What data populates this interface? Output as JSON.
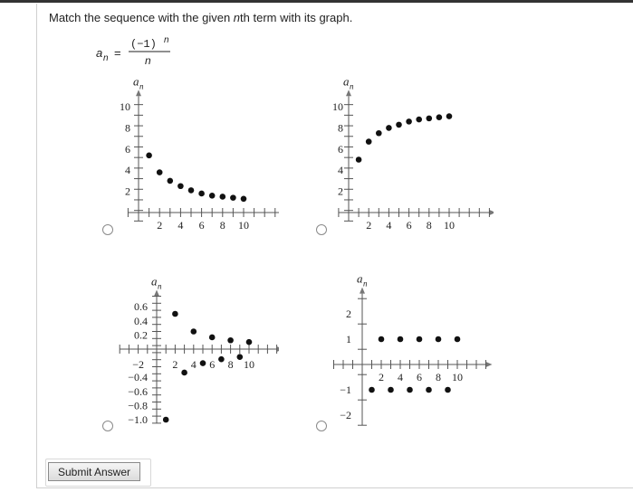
{
  "question": {
    "text_before": "Match the sequence with the given ",
    "n_var": "n",
    "text_after": "th term with its graph.",
    "formula_lhs": "a",
    "formula_sub": "n",
    "formula_eq": "=",
    "formula_num": "(−1)",
    "formula_num_exp": "n",
    "formula_den": "n"
  },
  "submit_label": "Submit Answer",
  "graphs": [
    {
      "id": "A",
      "ylabel": "a",
      "ylabel_sub": "n",
      "xlabel": "n",
      "xticks": [
        "2",
        "4",
        "6",
        "8",
        "10"
      ],
      "yticks": [
        "2",
        "4",
        "6",
        "8",
        "10"
      ],
      "chart_data": {
        "type": "scatter",
        "x": [
          1,
          2,
          3,
          4,
          5,
          6,
          7,
          8,
          9,
          10
        ],
        "y": [
          5.4,
          3.8,
          3.0,
          2.5,
          2.1,
          1.8,
          1.6,
          1.5,
          1.4,
          1.3
        ]
      }
    },
    {
      "id": "B",
      "ylabel": "a",
      "ylabel_sub": "n",
      "xlabel": "n",
      "xticks": [
        "2",
        "4",
        "6",
        "8",
        "10"
      ],
      "yticks": [
        "2",
        "4",
        "6",
        "8",
        "10"
      ],
      "chart_data": {
        "type": "scatter",
        "x": [
          1,
          2,
          3,
          4,
          5,
          6,
          7,
          8,
          9,
          10
        ],
        "y": [
          5.0,
          6.7,
          7.5,
          8.0,
          8.3,
          8.6,
          8.8,
          8.9,
          9.0,
          9.1
        ]
      }
    },
    {
      "id": "C",
      "ylabel": "a",
      "ylabel_sub": "n",
      "xlabel": "n",
      "xticks": [
        "2",
        "4",
        "6",
        "8",
        "10"
      ],
      "yticks_pos": [
        "0.2",
        "0.4",
        "0.6"
      ],
      "yticks_neg": [
        "−0.4",
        "−0.6",
        "−0.8",
        "−1.0"
      ],
      "xtick_neg": "−2",
      "chart_data": {
        "type": "scatter",
        "x": [
          1,
          2,
          3,
          4,
          5,
          6,
          7,
          8,
          9,
          10
        ],
        "y": [
          -1.0,
          0.5,
          -0.333,
          0.25,
          -0.2,
          0.167,
          -0.143,
          0.125,
          -0.111,
          0.1
        ]
      }
    },
    {
      "id": "D",
      "ylabel": "a",
      "ylabel_sub": "n",
      "xlabel": "n",
      "xticks": [
        "2",
        "4",
        "6",
        "8",
        "10"
      ],
      "yticks": [
        "−2",
        "−1",
        "1",
        "2"
      ],
      "chart_data": {
        "type": "scatter",
        "x": [
          1,
          2,
          3,
          4,
          5,
          6,
          7,
          8,
          9,
          10
        ],
        "y": [
          -1,
          1,
          -1,
          1,
          -1,
          1,
          -1,
          1,
          -1,
          1
        ]
      }
    }
  ]
}
